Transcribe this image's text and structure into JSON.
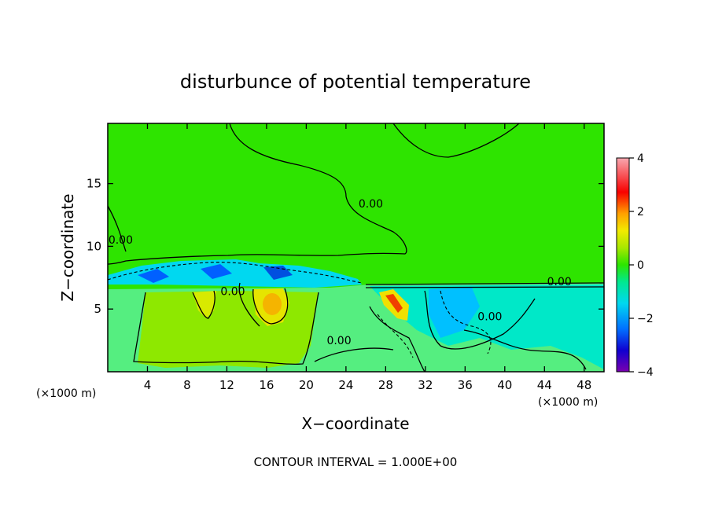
{
  "chart_data": {
    "type": "heatmap",
    "title": "disturbunce of potential temperature",
    "xlabel": "X−coordinate",
    "ylabel": "Z−coordinate",
    "x_unit_left": "(×1000 m)",
    "x_unit_right": "(×1000 m)",
    "footer": "CONTOUR INTERVAL = 1.000E+00",
    "xlim": [
      0,
      50
    ],
    "ylim": [
      0,
      19.8
    ],
    "x_ticks": [
      4,
      8,
      12,
      16,
      20,
      24,
      28,
      32,
      36,
      40,
      44,
      48
    ],
    "x_tick_labels": [
      "4",
      "8",
      "12",
      "16",
      "20",
      "24",
      "28",
      "32",
      "36",
      "40",
      "44",
      "48"
    ],
    "y_ticks": [
      5,
      10,
      15
    ],
    "y_tick_labels": [
      "5",
      "10",
      "15"
    ],
    "colorbar": {
      "range": [
        -4,
        4
      ],
      "ticks": [
        4,
        2,
        0,
        -2,
        -4
      ],
      "tick_labels": [
        "4",
        "2",
        "0",
        "−2",
        "−4"
      ]
    },
    "contour_labels": [
      {
        "text": "0.00",
        "x": 26.5,
        "y": 13.1
      },
      {
        "text": "0.00",
        "x": 1.3,
        "y": 10.2
      },
      {
        "text": "0.00",
        "x": 12.6,
        "y": 6.1
      },
      {
        "text": "0.00",
        "x": 23.3,
        "y": 2.2
      },
      {
        "text": "0.00",
        "x": 38.5,
        "y": 4.1
      },
      {
        "text": "0.00",
        "x": 45.5,
        "y": 6.9
      }
    ]
  }
}
